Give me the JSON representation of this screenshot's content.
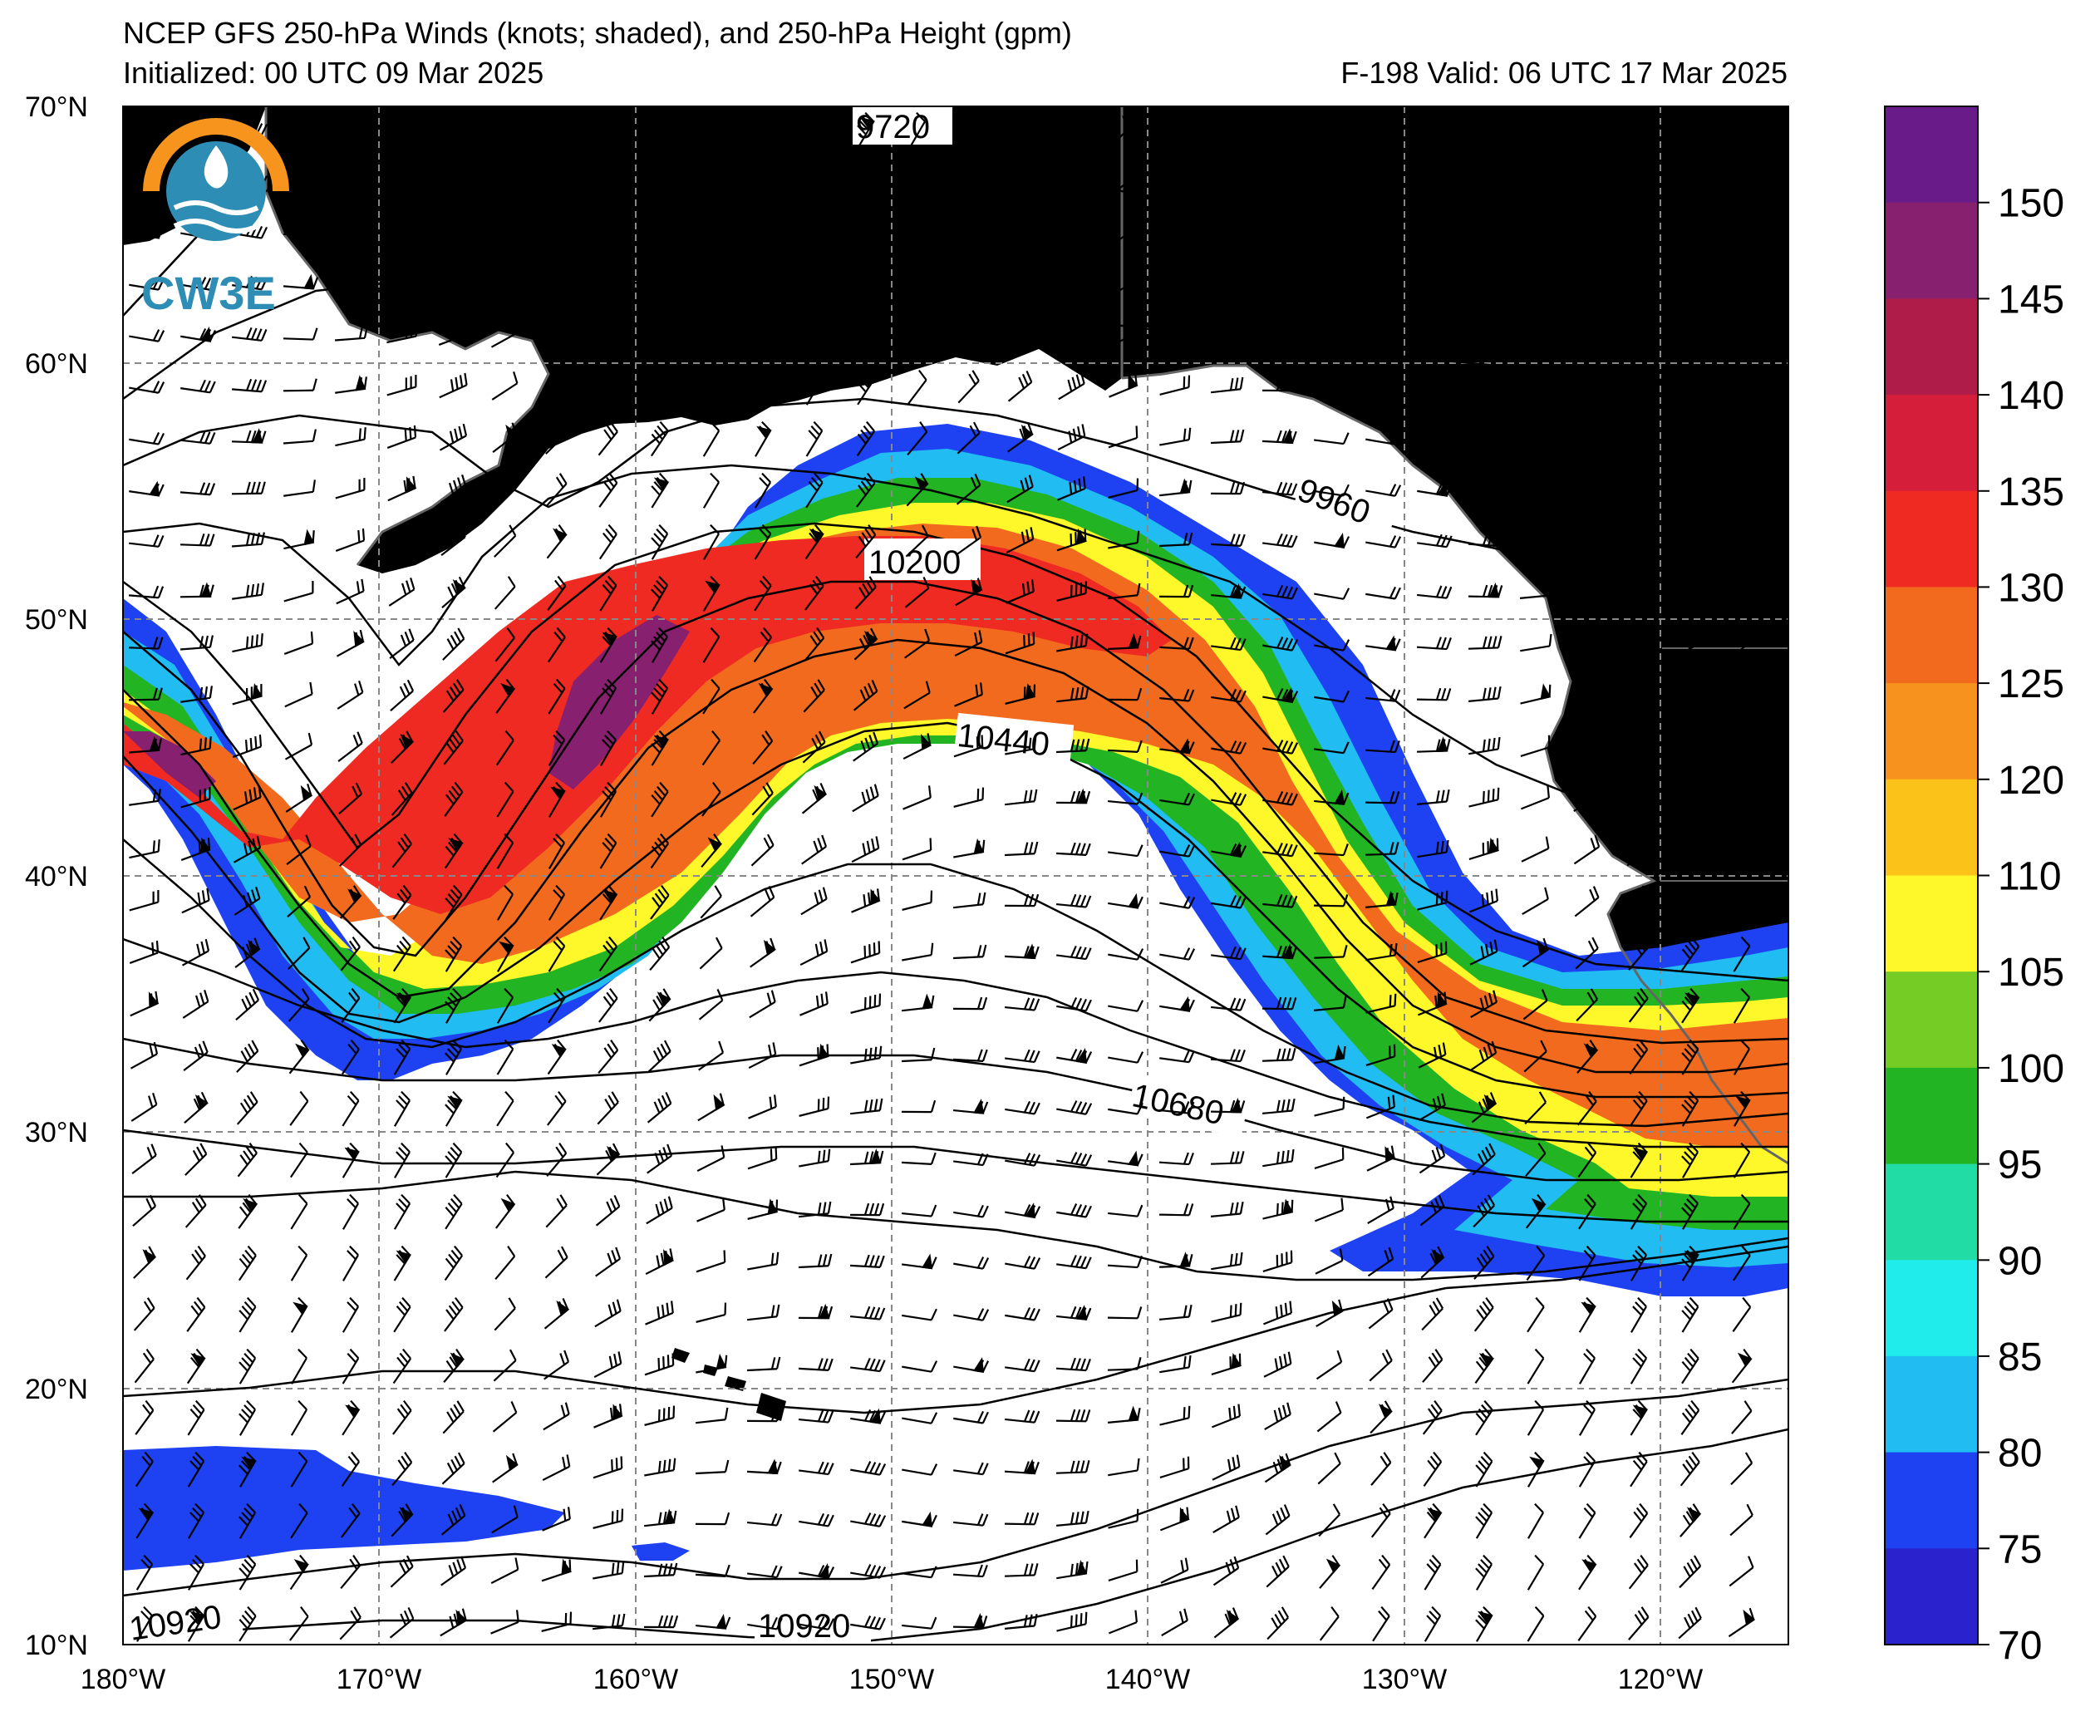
{
  "header": {
    "title": "NCEP GFS 250-hPa Winds (knots; shaded), and 250-hPa Height (gpm)",
    "initialized": "Initialized: 00 UTC 09 Mar 2025",
    "valid": "F-198  Valid: 06 UTC 17 Mar 2025"
  },
  "logo": {
    "text": "CW3E"
  },
  "map": {
    "extent": {
      "lon": [
        -180,
        -115
      ],
      "lat": [
        10,
        70
      ]
    },
    "lat_labels": [
      "70°N",
      "60°N",
      "50°N",
      "40°N",
      "30°N",
      "20°N",
      "10°N"
    ],
    "lon_labels": [
      "180°W",
      "170°W",
      "160°W",
      "150°W",
      "140°W",
      "130°W",
      "120°W"
    ],
    "land_color": "#e4e4e4",
    "coast_color": "#666666",
    "grid_color": "#888888"
  },
  "contours": {
    "labels": [
      "9720",
      "9960",
      "10200",
      "10440",
      "10680",
      "10920",
      "10920"
    ]
  },
  "colorbar": {
    "ticks": [
      "150",
      "145",
      "140",
      "135",
      "130",
      "125",
      "120",
      "110",
      "105",
      "100",
      "95",
      "90",
      "85",
      "80",
      "75",
      "70"
    ],
    "colors": [
      "#6a1b8a",
      "#882070",
      "#b01c4a",
      "#d41e3a",
      "#ee2a22",
      "#f26a1e",
      "#f7921e",
      "#fbc21a",
      "#fef82a",
      "#74cc24",
      "#23b424",
      "#22dca6",
      "#20ecec",
      "#20bcf2",
      "#1e42f2",
      "#2a22cc"
    ]
  }
}
